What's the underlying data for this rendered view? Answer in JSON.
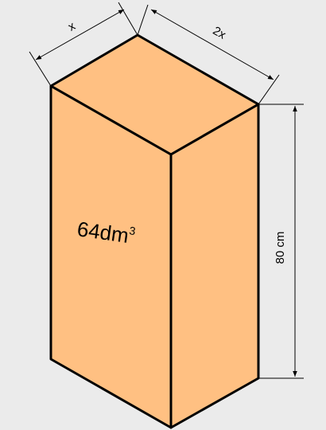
{
  "colors": {
    "background": "#ebebeb",
    "box_fill": "#ffc082",
    "outline": "#000000"
  },
  "labels": {
    "width": "x",
    "depth": "2x",
    "height": "80 cm",
    "volume_base": "64dm",
    "volume_exponent": "3"
  }
}
